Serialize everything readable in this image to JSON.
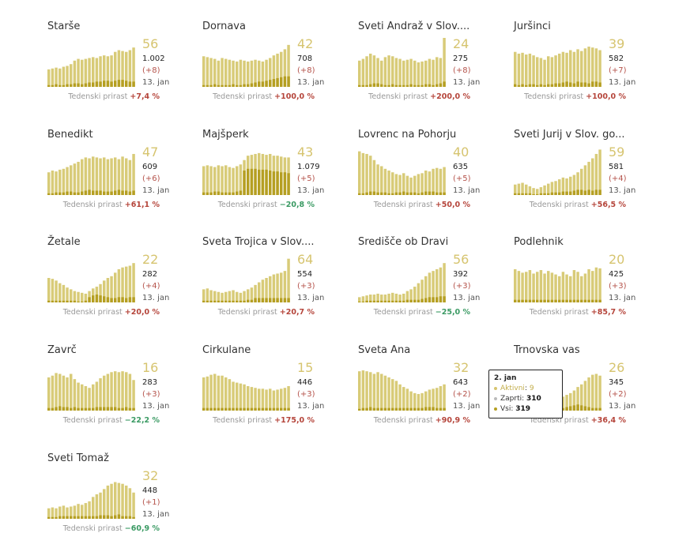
{
  "colors": {
    "total_bar": "#d8cb78",
    "active_bar": "#b59f22",
    "highlight": "#d6c46f",
    "increase": "#b5453b",
    "decrease": "#3a9a63"
  },
  "weekly_label": "Tedenski prirast",
  "date_label": "13. jan",
  "tooltip": {
    "date": "2. jan",
    "rows": [
      {
        "label": "Aktivni",
        "value": "9",
        "color": "#d6c46f"
      },
      {
        "label": "Zaprti",
        "value": "310",
        "color": "#bbbbbb"
      },
      {
        "label": "Vsi",
        "value": "319",
        "color": "#b59f22"
      }
    ]
  },
  "chart_data": [
    {
      "type": "bar",
      "title": "Starše",
      "active": "56",
      "total": "1.002",
      "delta": "(+8)",
      "weekly": "+7,4 %",
      "trend": "up",
      "values": [
        20,
        21,
        22,
        21,
        23,
        24,
        26,
        30,
        32,
        31,
        32,
        33,
        34,
        33,
        35,
        36,
        35,
        36,
        40,
        42,
        41,
        40,
        42,
        45
      ],
      "active_series": [
        2,
        2,
        3,
        2,
        2,
        3,
        3,
        4,
        4,
        3,
        4,
        5,
        5,
        6,
        6,
        7,
        7,
        6,
        7,
        8,
        8,
        7,
        6,
        6
      ]
    },
    {
      "type": "bar",
      "title": "Dornava",
      "active": "42",
      "total": "708",
      "delta": "(+8)",
      "weekly": "+100,0 %",
      "trend": "up",
      "values": [
        35,
        34,
        33,
        32,
        30,
        33,
        32,
        31,
        30,
        29,
        31,
        30,
        29,
        30,
        31,
        30,
        29,
        31,
        33,
        36,
        38,
        40,
        43,
        48
      ],
      "active_series": [
        2,
        2,
        2,
        3,
        2,
        2,
        2,
        2,
        3,
        2,
        2,
        3,
        3,
        4,
        5,
        6,
        6,
        7,
        8,
        9,
        10,
        11,
        12,
        12
      ]
    },
    {
      "type": "bar",
      "title": "Sveti Andraž v Slov....",
      "active": "24",
      "total": "275",
      "delta": "(+8)",
      "weekly": "+200,0 %",
      "trend": "up",
      "values": [
        30,
        32,
        35,
        38,
        36,
        33,
        30,
        34,
        36,
        35,
        33,
        32,
        30,
        31,
        32,
        30,
        28,
        29,
        30,
        32,
        31,
        34,
        33,
        56
      ],
      "active_series": [
        2,
        2,
        2,
        3,
        4,
        4,
        3,
        2,
        2,
        3,
        2,
        2,
        2,
        2,
        3,
        2,
        2,
        2,
        3,
        3,
        2,
        3,
        4,
        6
      ]
    },
    {
      "type": "bar",
      "title": "Juršinci",
      "active": "39",
      "total": "582",
      "delta": "(+7)",
      "weekly": "+100,0 %",
      "trend": "up",
      "values": [
        40,
        38,
        39,
        37,
        38,
        36,
        34,
        33,
        31,
        35,
        34,
        36,
        38,
        40,
        39,
        42,
        40,
        43,
        41,
        44,
        46,
        45,
        44,
        42
      ],
      "active_series": [
        3,
        2,
        3,
        2,
        3,
        3,
        2,
        3,
        2,
        3,
        3,
        4,
        4,
        5,
        6,
        5,
        4,
        6,
        5,
        5,
        4,
        6,
        6,
        5
      ]
    },
    {
      "type": "bar",
      "title": "Benedikt",
      "active": "47",
      "total": "609",
      "delta": "(+6)",
      "weekly": "+61,1 %",
      "trend": "up",
      "values": [
        26,
        28,
        27,
        29,
        30,
        32,
        34,
        36,
        38,
        41,
        43,
        42,
        44,
        43,
        42,
        43,
        41,
        42,
        43,
        41,
        44,
        42,
        40,
        47
      ],
      "active_series": [
        2,
        2,
        3,
        3,
        3,
        4,
        4,
        3,
        3,
        4,
        5,
        6,
        5,
        5,
        5,
        4,
        4,
        4,
        5,
        6,
        5,
        5,
        4,
        5
      ]
    },
    {
      "type": "bar",
      "title": "Majšperk",
      "active": "43",
      "total": "1.079",
      "delta": "(+5)",
      "weekly": "−20,8 %",
      "trend": "down",
      "values": [
        33,
        34,
        33,
        32,
        34,
        33,
        34,
        32,
        31,
        33,
        35,
        40,
        45,
        46,
        47,
        48,
        47,
        46,
        47,
        45,
        45,
        44,
        43,
        43
      ],
      "active_series": [
        3,
        3,
        3,
        4,
        4,
        3,
        3,
        3,
        3,
        4,
        5,
        28,
        30,
        30,
        30,
        29,
        29,
        29,
        28,
        27,
        27,
        26,
        26,
        25
      ]
    },
    {
      "type": "bar",
      "title": "Lovrenc na Pohorju",
      "active": "40",
      "total": "635",
      "delta": "(+5)",
      "weekly": "+50,0 %",
      "trend": "up",
      "values": [
        50,
        48,
        47,
        45,
        40,
        35,
        33,
        30,
        28,
        26,
        24,
        23,
        25,
        22,
        20,
        22,
        24,
        25,
        28,
        27,
        30,
        31,
        30,
        32
      ],
      "active_series": [
        2,
        2,
        3,
        4,
        4,
        3,
        3,
        3,
        2,
        2,
        3,
        3,
        4,
        3,
        3,
        3,
        2,
        3,
        4,
        4,
        4,
        3,
        3,
        3
      ]
    },
    {
      "type": "bar",
      "title": "Sveti Jurij v Slov. go...",
      "active": "59",
      "total": "581",
      "delta": "(+4)",
      "weekly": "+56,5 %",
      "trend": "up",
      "values": [
        12,
        13,
        14,
        12,
        10,
        8,
        7,
        9,
        11,
        13,
        15,
        16,
        18,
        20,
        19,
        21,
        23,
        26,
        30,
        34,
        38,
        42,
        47,
        52
      ],
      "active_series": [
        2,
        2,
        2,
        2,
        2,
        1,
        1,
        2,
        2,
        2,
        3,
        3,
        3,
        4,
        4,
        4,
        5,
        6,
        6,
        5,
        6,
        5,
        6,
        6
      ]
    },
    {
      "type": "bar",
      "title": "Žetale",
      "active": "22",
      "total": "282",
      "delta": "(+4)",
      "weekly": "+20,0 %",
      "trend": "up",
      "values": [
        28,
        27,
        25,
        22,
        20,
        17,
        15,
        13,
        12,
        11,
        10,
        13,
        16,
        18,
        21,
        25,
        28,
        30,
        34,
        38,
        40,
        41,
        42,
        45
      ],
      "active_series": [
        2,
        2,
        2,
        2,
        2,
        2,
        2,
        2,
        1,
        1,
        2,
        6,
        8,
        9,
        8,
        7,
        6,
        5,
        5,
        6,
        6,
        5,
        6,
        6
      ]
    },
    {
      "type": "bar",
      "title": "Sveta Trojica v Slov....",
      "active": "64",
      "total": "554",
      "delta": "(+3)",
      "weekly": "+20,7 %",
      "trend": "up",
      "values": [
        15,
        16,
        14,
        13,
        12,
        11,
        12,
        13,
        14,
        12,
        11,
        13,
        15,
        17,
        20,
        23,
        26,
        28,
        30,
        32,
        33,
        34,
        36,
        50
      ],
      "active_series": [
        2,
        2,
        2,
        2,
        2,
        2,
        2,
        2,
        2,
        2,
        2,
        2,
        3,
        3,
        5,
        5,
        5,
        5,
        5,
        5,
        5,
        5,
        5,
        5
      ]
    },
    {
      "type": "bar",
      "title": "Središče ob Dravi",
      "active": "56",
      "total": "392",
      "delta": "(+3)",
      "weekly": "−25,0 %",
      "trend": "down",
      "values": [
        6,
        7,
        8,
        9,
        9,
        10,
        9,
        9,
        10,
        11,
        10,
        9,
        10,
        13,
        15,
        18,
        22,
        26,
        30,
        34,
        36,
        38,
        40,
        45
      ],
      "active_series": [
        1,
        1,
        2,
        2,
        2,
        2,
        2,
        2,
        2,
        2,
        2,
        2,
        2,
        3,
        3,
        3,
        3,
        4,
        5,
        6,
        6,
        6,
        7,
        7
      ]
    },
    {
      "type": "bar",
      "title": "Podlehnik",
      "active": "20",
      "total": "425",
      "delta": "(+3)",
      "weekly": "+85,7 %",
      "trend": "up",
      "values": [
        38,
        36,
        34,
        35,
        37,
        33,
        35,
        37,
        33,
        36,
        34,
        32,
        30,
        35,
        32,
        30,
        37,
        35,
        30,
        33,
        38,
        36,
        40,
        39
      ],
      "active_series": [
        3,
        3,
        3,
        3,
        3,
        3,
        3,
        3,
        3,
        3,
        3,
        3,
        3,
        3,
        3,
        3,
        3,
        3,
        3,
        3,
        3,
        3,
        3,
        3
      ]
    },
    {
      "type": "bar",
      "title": "Zavrč",
      "active": "16",
      "total": "283",
      "delta": "(+3)",
      "weekly": "−22,2 %",
      "trend": "down",
      "values": [
        38,
        40,
        43,
        42,
        40,
        38,
        42,
        36,
        32,
        30,
        28,
        26,
        30,
        33,
        37,
        40,
        42,
        44,
        45,
        44,
        45,
        44,
        42,
        35
      ],
      "active_series": [
        3,
        3,
        4,
        5,
        4,
        4,
        3,
        4,
        3,
        3,
        3,
        3,
        3,
        4,
        4,
        4,
        4,
        4,
        4,
        3,
        3,
        4,
        3,
        3
      ]
    },
    {
      "type": "bar",
      "title": "Cirkulane",
      "active": "15",
      "total": "446",
      "delta": "(+3)",
      "weekly": "+175,0 %",
      "trend": "up",
      "values": [
        38,
        39,
        41,
        42,
        40,
        40,
        38,
        36,
        33,
        32,
        31,
        30,
        28,
        27,
        26,
        25,
        25,
        24,
        25,
        23,
        24,
        25,
        26,
        28
      ],
      "active_series": [
        3,
        3,
        3,
        3,
        3,
        3,
        3,
        3,
        3,
        3,
        3,
        3,
        3,
        3,
        3,
        3,
        3,
        3,
        3,
        3,
        3,
        3,
        3,
        3
      ]
    },
    {
      "type": "bar",
      "title": "Sveta Ana",
      "active": "32",
      "total": "643",
      "delta": "(+2)",
      "weekly": "+90,9 %",
      "trend": "up",
      "values": [
        45,
        46,
        45,
        44,
        42,
        44,
        42,
        40,
        38,
        36,
        34,
        30,
        27,
        25,
        22,
        20,
        19,
        20,
        22,
        24,
        25,
        26,
        28,
        30
      ],
      "active_series": [
        2,
        3,
        3,
        4,
        3,
        3,
        3,
        3,
        3,
        3,
        3,
        3,
        3,
        3,
        3,
        3,
        3,
        3,
        4,
        4,
        4,
        3,
        3,
        3
      ]
    },
    {
      "type": "bar",
      "title": "Trnovska vas",
      "active": "26",
      "total": "345",
      "delta": "(+2)",
      "weekly": "+36,4 %",
      "trend": "up",
      "values": [
        10,
        11,
        12,
        13,
        12,
        11,
        10,
        9,
        10,
        11,
        12,
        13,
        14,
        16,
        18,
        20,
        23,
        27,
        30,
        34,
        38,
        41,
        42,
        40
      ],
      "active_series": [
        1,
        1,
        1,
        2,
        1,
        1,
        1,
        1,
        1,
        2,
        2,
        2,
        3,
        3,
        4,
        5,
        6,
        7,
        6,
        5,
        4,
        3,
        3,
        3
      ]
    },
    {
      "type": "bar",
      "title": "Sveti Tomaž",
      "active": "32",
      "total": "448",
      "delta": "(+1)",
      "weekly": "−60,9 %",
      "trend": "down",
      "values": [
        12,
        13,
        12,
        14,
        15,
        13,
        14,
        15,
        17,
        16,
        18,
        20,
        25,
        28,
        30,
        34,
        38,
        40,
        42,
        41,
        40,
        38,
        35,
        30
      ],
      "active_series": [
        2,
        2,
        2,
        3,
        3,
        3,
        3,
        3,
        3,
        3,
        3,
        3,
        3,
        3,
        4,
        4,
        4,
        3,
        4,
        5,
        3,
        3,
        3,
        2
      ]
    }
  ]
}
